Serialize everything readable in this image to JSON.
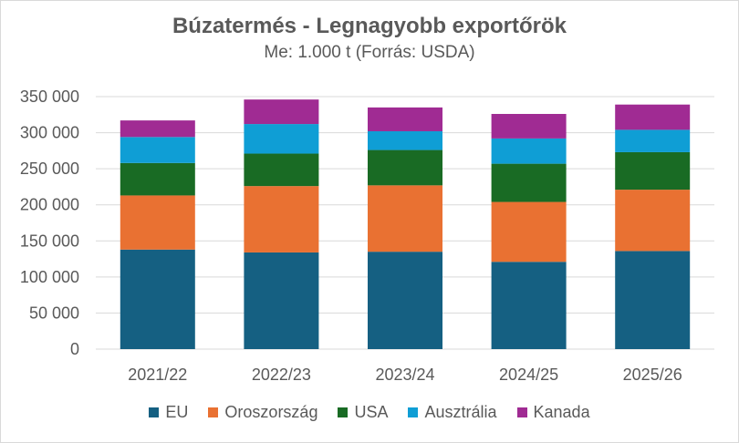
{
  "chart_data": {
    "type": "bar",
    "stacked": true,
    "title": "Búzatermés - Legnagyobb exportőrök",
    "subtitle": "Me: 1.000 t (Forrás: USDA)",
    "categories": [
      "2021/22",
      "2022/23",
      "2023/24",
      "2024/25",
      "2025/26"
    ],
    "series": [
      {
        "name": "EU",
        "color": "#156082",
        "values": [
          138000,
          134000,
          135000,
          121000,
          136000
        ]
      },
      {
        "name": "Oroszország",
        "color": "#E97132",
        "values": [
          75000,
          92000,
          92000,
          83000,
          85000
        ]
      },
      {
        "name": "USA",
        "color": "#196B24",
        "values": [
          45000,
          45000,
          49000,
          53000,
          52000
        ]
      },
      {
        "name": "Ausztrália",
        "color": "#0F9ED5",
        "values": [
          36000,
          41000,
          26000,
          35000,
          31000
        ]
      },
      {
        "name": "Kanada",
        "color": "#A02B93",
        "values": [
          23000,
          34000,
          33000,
          34000,
          35000
        ]
      }
    ],
    "ylim": [
      0,
      350000
    ],
    "yticks": [
      0,
      50000,
      100000,
      150000,
      200000,
      250000,
      300000,
      350000
    ],
    "ytick_labels": [
      "0",
      "50 000",
      "100 000",
      "150 000",
      "200 000",
      "250 000",
      "300 000",
      "350 000"
    ],
    "grid": true,
    "legend_position": "bottom"
  }
}
